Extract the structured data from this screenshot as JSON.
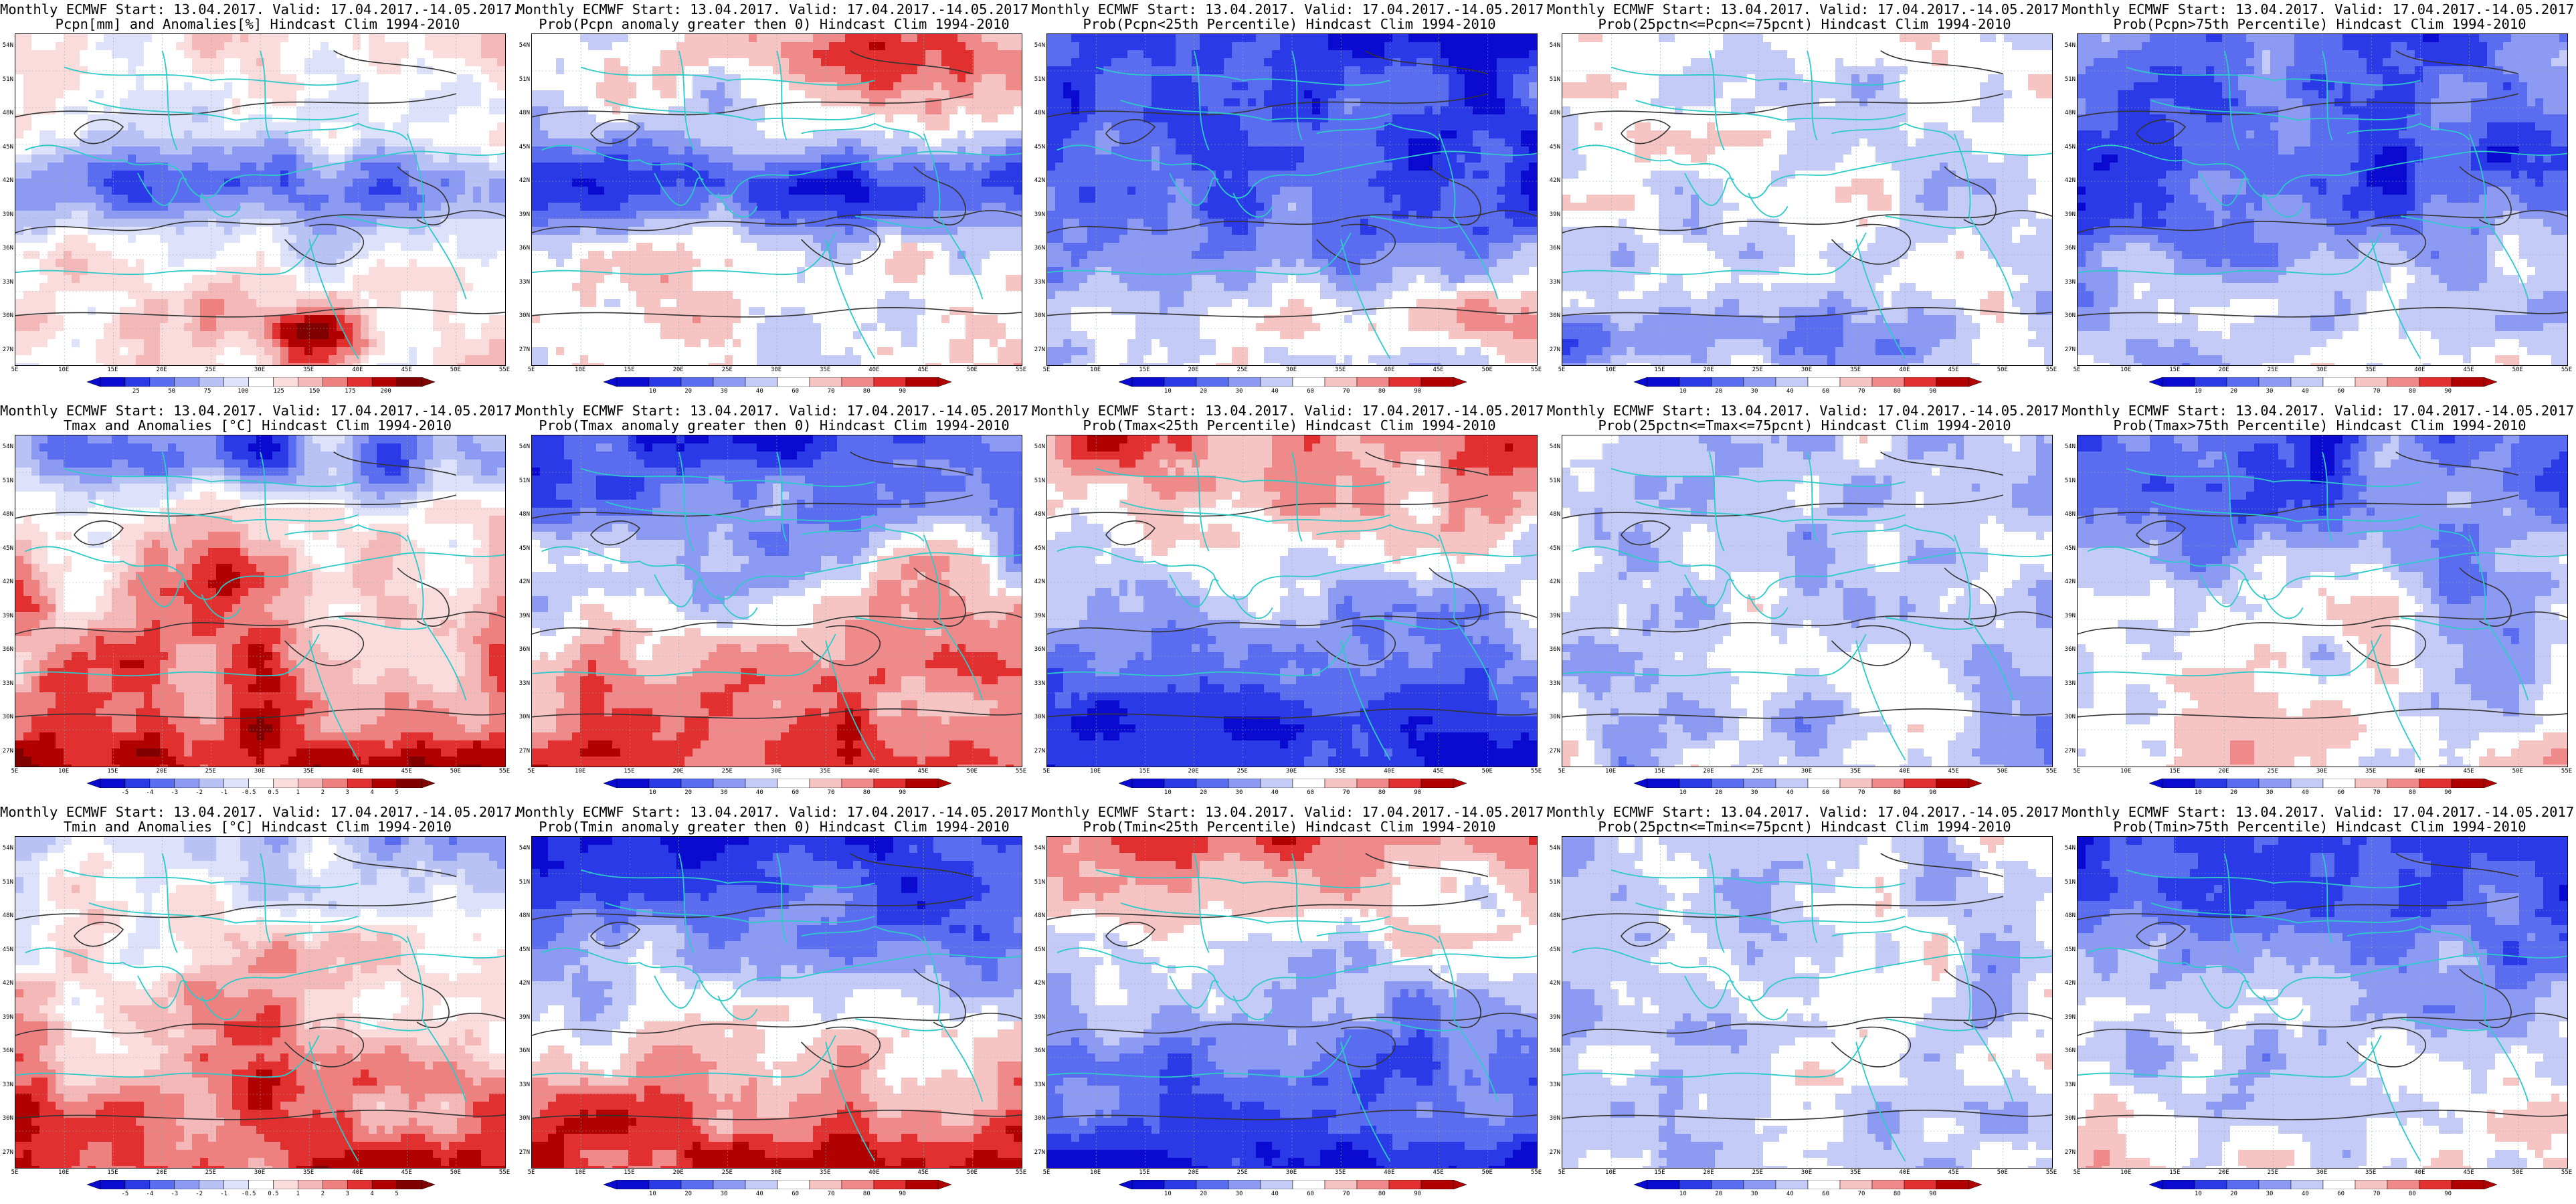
{
  "figure": {
    "x_ticks": [
      "5E",
      "10E",
      "15E",
      "20E",
      "25E",
      "30E",
      "35E",
      "40E",
      "45E",
      "50E",
      "55E"
    ],
    "y_ticks": [
      "54N",
      "51N",
      "48N",
      "45N",
      "42N",
      "39N",
      "36N",
      "33N",
      "30N",
      "27N"
    ],
    "colors": {
      "coast": "#2ec9c9",
      "contour": "#333333",
      "neg_deep": "#0a0ad0",
      "neg_mid": "#5a6cf0",
      "neg_light": "#b8c2f5",
      "pos_light": "#f5b8b8",
      "pos_mid": "#ee5050",
      "pos_deep": "#b00000"
    },
    "rows": [
      {
        "panels": [
          {
            "title_line1": "Monthly ECMWF Start: 13.04.2017. Valid: 17.04.2017.-14.05.2017.",
            "title_line2": "Pcpn[mm] and Anomalies[%] Hindcast Clim 1994-2010",
            "colorbar": [
              "25",
              "50",
              "75",
              "100",
              "125",
              "150",
              "175",
              "200"
            ],
            "pattern": "pcpn_anom"
          },
          {
            "title_line1": "Monthly ECMWF Start: 13.04.2017. Valid: 17.04.2017.-14.05.2017.",
            "title_line2": "Prob(Pcpn anomaly greater then 0) Hindcast Clim 1994-2010",
            "colorbar": [
              "10",
              "20",
              "30",
              "40",
              "60",
              "70",
              "80",
              "90"
            ],
            "pattern": "pcpn_gt0"
          },
          {
            "title_line1": "Monthly ECMWF Start: 13.04.2017. Valid: 17.04.2017.-14.05.2017.",
            "title_line2": "Prob(Pcpn<25th Percentile) Hindcast Clim 1994-2010",
            "colorbar": [
              "10",
              "20",
              "30",
              "40",
              "60",
              "70",
              "80",
              "90"
            ],
            "pattern": "pcpn_lt25"
          },
          {
            "title_line1": "Monthly ECMWF Start: 13.04.2017. Valid: 17.04.2017.-14.05.2017.",
            "title_line2": "Prob(25pctn<=Pcpn<=75pcnt) Hindcast Clim 1994-2010",
            "colorbar": [
              "10",
              "20",
              "30",
              "40",
              "60",
              "70",
              "80",
              "90"
            ],
            "pattern": "pcpn_mid"
          },
          {
            "title_line1": "Monthly ECMWF Start: 13.04.2017. Valid: 17.04.2017.-14.05.2017.",
            "title_line2": "Prob(Pcpn>75th Percentile) Hindcast Clim 1994-2010",
            "colorbar": [
              "10",
              "20",
              "30",
              "40",
              "60",
              "70",
              "80",
              "90"
            ],
            "pattern": "pcpn_gt75"
          }
        ]
      },
      {
        "panels": [
          {
            "title_line1": "Monthly ECMWF Start: 13.04.2017. Valid: 17.04.2017.-14.05.2017.",
            "title_line2": "Tmax and Anomalies [°C] Hindcast Clim 1994-2010",
            "colorbar": [
              "-5",
              "-4",
              "-3",
              "-2",
              "-1",
              "-0.5",
              "0.5",
              "1",
              "2",
              "3",
              "4",
              "5"
            ],
            "pattern": "tmax_anom"
          },
          {
            "title_line1": "Monthly ECMWF Start: 13.04.2017. Valid: 17.04.2017.-14.05.2017.",
            "title_line2": "Prob(Tmax anomaly greater then 0) Hindcast Clim 1994-2010",
            "colorbar": [
              "10",
              "20",
              "30",
              "40",
              "60",
              "70",
              "80",
              "90"
            ],
            "pattern": "tmax_gt0"
          },
          {
            "title_line1": "Monthly ECMWF Start: 13.04.2017. Valid: 17.04.2017.-14.05.2017.",
            "title_line2": "Prob(Tmax<25th Percentile) Hindcast Clim 1994-2010",
            "colorbar": [
              "10",
              "20",
              "30",
              "40",
              "60",
              "70",
              "80",
              "90"
            ],
            "pattern": "tmax_lt25"
          },
          {
            "title_line1": "Monthly ECMWF Start: 13.04.2017. Valid: 17.04.2017.-14.05.2017.",
            "title_line2": "Prob(25pctn<=Tmax<=75pcnt) Hindcast Clim 1994-2010",
            "colorbar": [
              "10",
              "20",
              "30",
              "40",
              "60",
              "70",
              "80",
              "90"
            ],
            "pattern": "tmax_mid"
          },
          {
            "title_line1": "Monthly ECMWF Start: 13.04.2017. Valid: 17.04.2017.-14.05.2017.",
            "title_line2": "Prob(Tmax>75th Percentile) Hindcast Clim 1994-2010",
            "colorbar": [
              "10",
              "20",
              "30",
              "40",
              "60",
              "70",
              "80",
              "90"
            ],
            "pattern": "tmax_gt75"
          }
        ]
      },
      {
        "panels": [
          {
            "title_line1": "Monthly ECMWF Start: 13.04.2017. Valid: 17.04.2017.-14.05.2017.",
            "title_line2": "Tmin and Anomalies [°C] Hindcast Clim 1994-2010",
            "colorbar": [
              "-5",
              "-4",
              "-3",
              "-2",
              "-1",
              "-0.5",
              "0.5",
              "1",
              "2",
              "3",
              "4",
              "5"
            ],
            "pattern": "tmin_anom"
          },
          {
            "title_line1": "Monthly ECMWF Start: 13.04.2017. Valid: 17.04.2017.-14.05.2017.",
            "title_line2": "Prob(Tmin anomaly greater then 0) Hindcast Clim 1994-2010",
            "colorbar": [
              "10",
              "20",
              "30",
              "40",
              "60",
              "70",
              "80",
              "90"
            ],
            "pattern": "tmin_gt0"
          },
          {
            "title_line1": "Monthly ECMWF Start: 13.04.2017. Valid: 17.04.2017.-14.05.2017.",
            "title_line2": "Prob(Tmin<25th Percentile) Hindcast Clim 1994-2010",
            "colorbar": [
              "10",
              "20",
              "30",
              "40",
              "60",
              "70",
              "80",
              "90"
            ],
            "pattern": "tmin_lt25"
          },
          {
            "title_line1": "Monthly ECMWF Start: 13.04.2017. Valid: 17.04.2017.-14.05.2017.",
            "title_line2": "Prob(25pctn<=Tmin<=75pcnt) Hindcast Clim 1994-2010",
            "colorbar": [
              "10",
              "20",
              "30",
              "40",
              "60",
              "70",
              "80",
              "90"
            ],
            "pattern": "tmin_mid"
          },
          {
            "title_line1": "Monthly ECMWF Start: 13.04.2017. Valid: 17.04.2017.-14.05.2017.",
            "title_line2": "Prob(Tmin>75th Percentile) Hindcast Clim 1994-2010",
            "colorbar": [
              "10",
              "20",
              "30",
              "40",
              "60",
              "70",
              "80",
              "90"
            ],
            "pattern": "tmin_gt75"
          }
        ]
      }
    ]
  }
}
